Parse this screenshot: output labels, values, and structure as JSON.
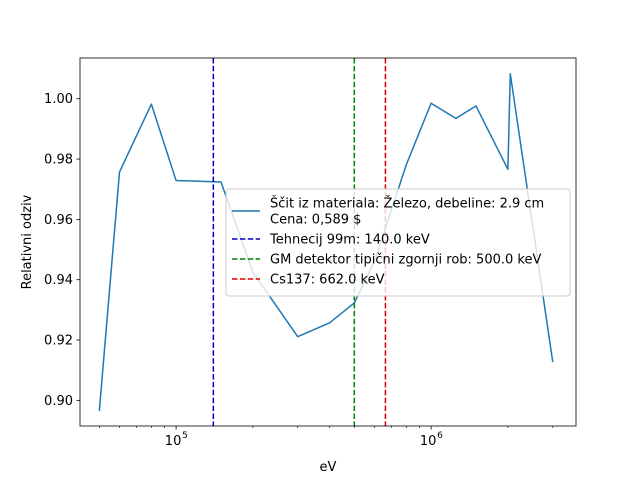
{
  "chart_data": {
    "type": "line",
    "xscale": "log",
    "xlabel": "eV",
    "ylabel": "Relativni odziv",
    "xlim": [
      42000,
      3700000
    ],
    "ylim": [
      0.8915,
      1.0135
    ],
    "yticks": [
      0.9,
      0.92,
      0.94,
      0.96,
      0.98,
      1.0
    ],
    "ytick_labels": [
      "0.90",
      "0.92",
      "0.94",
      "0.96",
      "0.98",
      "1.00"
    ],
    "xticks": [
      100000,
      1000000
    ],
    "xtick_labels": [
      "10",
      "10"
    ],
    "xtick_exponents": [
      "5",
      "6"
    ],
    "grid": false,
    "legend_position": "center-right",
    "series": [
      {
        "name": "Ščit iz materiala: Železo, debeline: 2.9 cm",
        "name_line2": "Cena: 0,589 $",
        "color": "#1f77b4",
        "style": "solid",
        "x": [
          50000,
          60000,
          80000,
          100000,
          150000,
          200000,
          300000,
          400000,
          500000,
          600000,
          800000,
          1000000,
          1250000,
          1500000,
          2000000,
          2044000,
          3000000
        ],
        "y": [
          0.8965,
          0.9757,
          0.9982,
          0.9729,
          0.9724,
          0.9425,
          0.9211,
          0.9257,
          0.9323,
          0.9462,
          0.9782,
          0.9985,
          0.9935,
          0.9976,
          0.9766,
          1.0083,
          0.9127
        ]
      }
    ],
    "vlines": [
      {
        "name": "Tehnecij 99m: 140.0 keV",
        "x": 140000,
        "color": "#0000cc",
        "style": "dashed"
      },
      {
        "name": "GM detektor tipični zgornji rob: 500.0 keV",
        "x": 500000,
        "color": "#008000",
        "style": "dashed"
      },
      {
        "name": "Cs137: 662.0 keV",
        "x": 662000,
        "color": "#dd0000",
        "style": "dashed"
      }
    ]
  }
}
